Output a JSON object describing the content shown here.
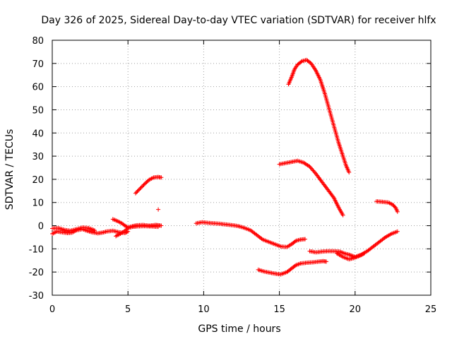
{
  "chart_data": {
    "type": "scatter",
    "title": "Day 326 of 2025, Sidereal Day-to-day VTEC variation (SDTVAR) for receiver hlfx",
    "xlabel": "GPS time / hours",
    "ylabel": "SDTVAR / TECUs",
    "xlim": [
      0,
      25
    ],
    "ylim": [
      -30,
      80
    ],
    "x_ticks": [
      0,
      5,
      10,
      15,
      20,
      25
    ],
    "y_ticks": [
      -30,
      -20,
      -10,
      0,
      10,
      20,
      30,
      40,
      50,
      60,
      70,
      80
    ],
    "grid": true,
    "marker": "plus",
    "marker_color": "#ff0000",
    "series": [
      {
        "points": [
          [
            0.0,
            -3.5
          ],
          [
            0.3,
            -2.5
          ],
          [
            0.6,
            -2.8
          ],
          [
            1.0,
            -3.2
          ],
          [
            1.3,
            -3.0
          ],
          [
            1.6,
            -2.0
          ],
          [
            2.0,
            -1.5
          ],
          [
            2.3,
            -2.2
          ],
          [
            2.6,
            -2.8
          ],
          [
            3.0,
            -3.3
          ],
          [
            3.3,
            -3.0
          ],
          [
            3.6,
            -2.5
          ],
          [
            4.0,
            -2.2
          ],
          [
            4.4,
            -2.8
          ],
          [
            4.8,
            -3.2
          ],
          [
            5.0,
            -2.5
          ]
        ]
      },
      {
        "points": [
          [
            0.0,
            -1.2
          ],
          [
            0.4,
            -1.0
          ],
          [
            0.8,
            -1.8
          ],
          [
            1.2,
            -2.2
          ],
          [
            1.6,
            -1.5
          ],
          [
            2.0,
            -0.8
          ],
          [
            2.4,
            -1.0
          ],
          [
            2.8,
            -2.0
          ]
        ]
      },
      {
        "points": [
          [
            4.0,
            2.8
          ],
          [
            4.3,
            2.0
          ],
          [
            4.6,
            1.0
          ],
          [
            4.8,
            0.0
          ],
          [
            5.0,
            -0.8
          ],
          [
            5.3,
            -0.2
          ],
          [
            5.6,
            0.2
          ],
          [
            6.0,
            0.3
          ],
          [
            6.4,
            0.0
          ],
          [
            6.8,
            0.3
          ],
          [
            7.0,
            0.2
          ],
          [
            7.2,
            0.0
          ]
        ]
      },
      {
        "points": [
          [
            4.2,
            -4.5
          ],
          [
            4.5,
            -3.5
          ],
          [
            4.8,
            -2.2
          ],
          [
            5.0,
            -1.0
          ],
          [
            5.3,
            -0.5
          ],
          [
            5.6,
            -0.3
          ],
          [
            6.0,
            -0.2
          ],
          [
            6.5,
            -0.3
          ],
          [
            7.0,
            -0.5
          ]
        ]
      },
      {
        "points": [
          [
            5.5,
            14.0
          ],
          [
            5.8,
            16.0
          ],
          [
            6.1,
            18.0
          ],
          [
            6.4,
            19.8
          ],
          [
            6.7,
            20.8
          ],
          [
            7.0,
            21.0
          ],
          [
            7.2,
            20.8
          ]
        ]
      },
      {
        "points": [
          [
            7.0,
            7.0
          ]
        ]
      },
      {
        "points": [
          [
            9.5,
            1.0
          ],
          [
            9.9,
            1.5
          ],
          [
            10.3,
            1.2
          ],
          [
            10.7,
            1.0
          ],
          [
            11.1,
            0.8
          ],
          [
            11.5,
            0.5
          ],
          [
            11.9,
            0.2
          ],
          [
            12.3,
            -0.2
          ],
          [
            12.7,
            -1.0
          ],
          [
            13.1,
            -2.0
          ],
          [
            13.5,
            -4.0
          ],
          [
            13.9,
            -6.0
          ],
          [
            14.3,
            -7.0
          ],
          [
            14.7,
            -8.0
          ],
          [
            15.1,
            -9.0
          ],
          [
            15.5,
            -9.2
          ],
          [
            15.8,
            -8.0
          ],
          [
            16.1,
            -6.5
          ],
          [
            16.4,
            -6.0
          ],
          [
            16.7,
            -5.8
          ]
        ]
      },
      {
        "points": [
          [
            13.6,
            -19.0
          ],
          [
            14.0,
            -19.8
          ],
          [
            14.4,
            -20.3
          ],
          [
            14.8,
            -20.8
          ],
          [
            15.1,
            -21.0
          ],
          [
            15.5,
            -20.0
          ],
          [
            15.8,
            -18.5
          ],
          [
            16.1,
            -17.0
          ],
          [
            16.4,
            -16.3
          ],
          [
            16.8,
            -16.0
          ],
          [
            17.2,
            -15.8
          ],
          [
            17.6,
            -15.5
          ],
          [
            17.9,
            -15.3
          ],
          [
            18.1,
            -15.5
          ]
        ]
      },
      {
        "points": [
          [
            15.0,
            26.5
          ],
          [
            15.4,
            27.0
          ],
          [
            15.8,
            27.5
          ],
          [
            16.2,
            28.0
          ],
          [
            16.6,
            27.2
          ],
          [
            17.0,
            25.5
          ],
          [
            17.4,
            22.5
          ],
          [
            17.8,
            19.0
          ],
          [
            18.2,
            15.5
          ],
          [
            18.6,
            12.0
          ],
          [
            18.9,
            8.0
          ],
          [
            19.2,
            4.5
          ]
        ]
      },
      {
        "points": [
          [
            15.6,
            61.0
          ],
          [
            15.8,
            64.0
          ],
          [
            16.0,
            67.5
          ],
          [
            16.2,
            69.5
          ],
          [
            16.5,
            71.0
          ],
          [
            16.8,
            71.5
          ],
          [
            17.1,
            70.0
          ],
          [
            17.4,
            67.0
          ],
          [
            17.7,
            63.0
          ],
          [
            18.0,
            57.0
          ],
          [
            18.3,
            50.0
          ],
          [
            18.6,
            43.0
          ],
          [
            18.9,
            36.0
          ],
          [
            19.2,
            30.0
          ],
          [
            19.4,
            26.0
          ],
          [
            19.6,
            23.0
          ]
        ]
      },
      {
        "points": [
          [
            17.0,
            -11.0
          ],
          [
            17.4,
            -11.5
          ],
          [
            17.8,
            -11.2
          ],
          [
            18.2,
            -11.0
          ],
          [
            18.6,
            -11.0
          ],
          [
            19.0,
            -11.2
          ],
          [
            19.3,
            -12.0
          ],
          [
            19.6,
            -12.5
          ],
          [
            19.8,
            -13.0
          ],
          [
            20.0,
            -13.5
          ],
          [
            20.4,
            -12.5
          ],
          [
            20.8,
            -11.0
          ],
          [
            21.2,
            -9.0
          ],
          [
            21.6,
            -7.0
          ],
          [
            22.0,
            -5.0
          ],
          [
            22.4,
            -3.5
          ],
          [
            22.8,
            -2.5
          ]
        ]
      },
      {
        "points": [
          [
            18.8,
            -12.0
          ],
          [
            19.2,
            -13.5
          ],
          [
            19.6,
            -14.5
          ],
          [
            19.9,
            -14.0
          ],
          [
            20.3,
            -13.0
          ],
          [
            20.6,
            -12.0
          ]
        ]
      },
      {
        "points": [
          [
            21.4,
            10.5
          ],
          [
            21.8,
            10.3
          ],
          [
            22.2,
            10.0
          ],
          [
            22.5,
            9.0
          ],
          [
            22.7,
            7.5
          ],
          [
            22.8,
            6.0
          ]
        ]
      }
    ]
  }
}
